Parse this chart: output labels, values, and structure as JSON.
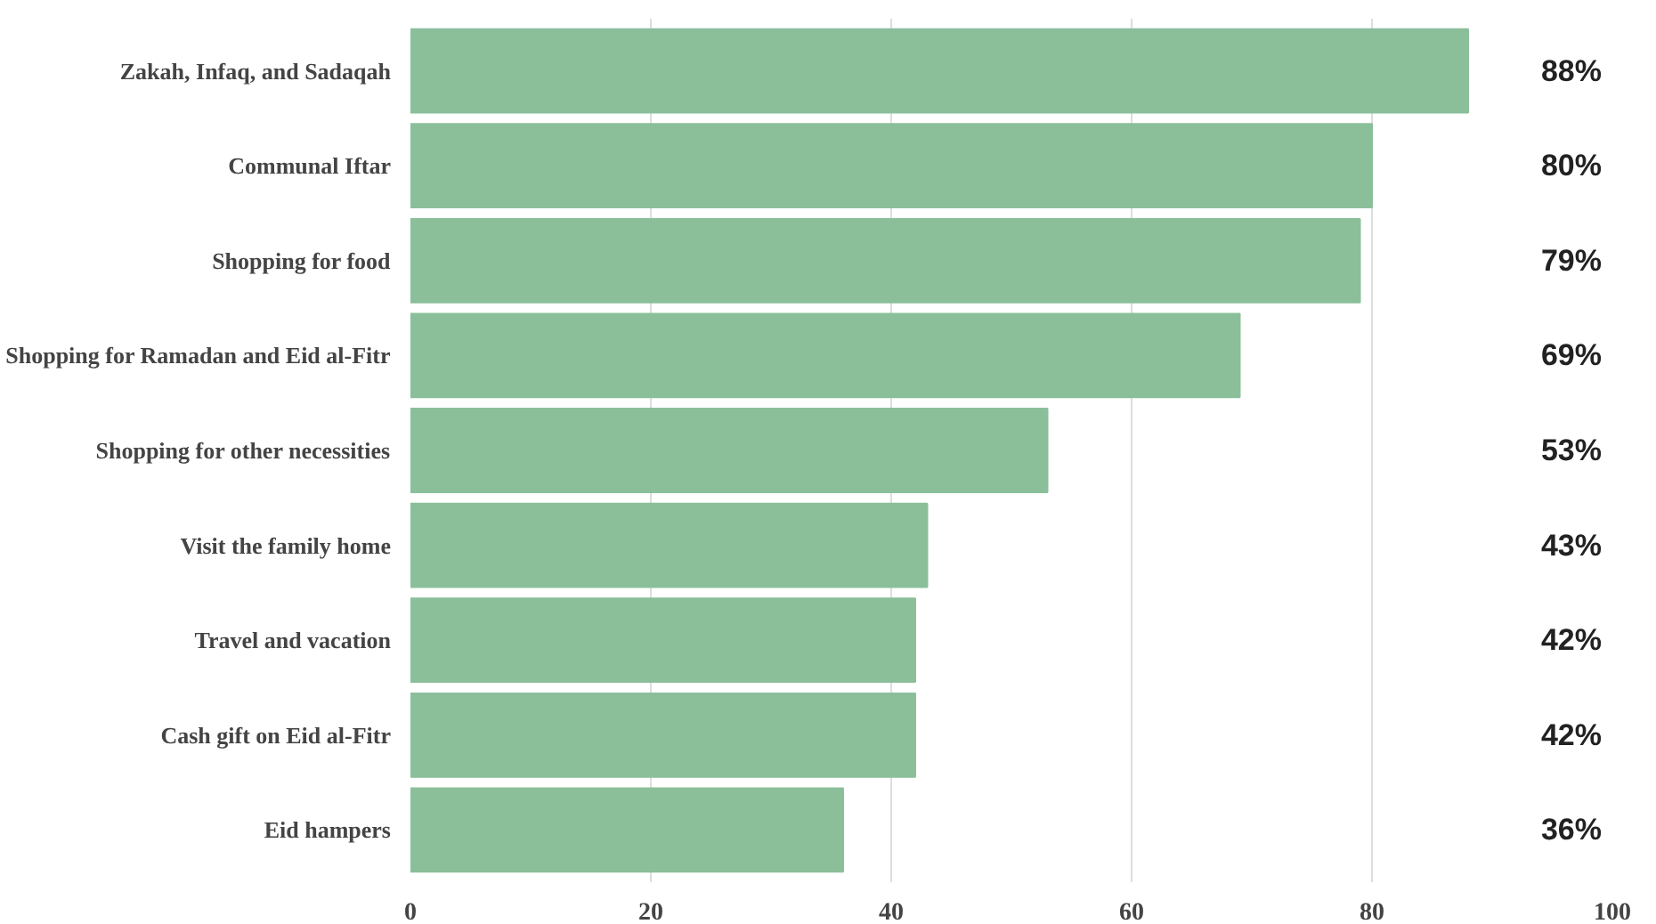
{
  "chart_data": {
    "type": "bar",
    "orientation": "horizontal",
    "categories": [
      "Zakah, Infaq, and Sadaqah",
      "Communal Iftar",
      "Shopping for food",
      "Shopping for Ramadan and Eid al-Fitr",
      "Shopping for other necessities",
      "Visit the family home",
      "Travel and vacation",
      "Cash gift on Eid al-Fitr",
      "Eid hampers"
    ],
    "values": [
      88,
      80,
      79,
      69,
      53,
      43,
      42,
      42,
      36
    ],
    "value_labels": [
      "88%",
      "80%",
      "79%",
      "69%",
      "53%",
      "43%",
      "42%",
      "42%",
      "36%"
    ],
    "color": "#8abf9a",
    "xlim": [
      0,
      100
    ],
    "xticks": [
      0,
      20,
      40,
      60,
      80,
      100
    ],
    "grid": "x"
  }
}
